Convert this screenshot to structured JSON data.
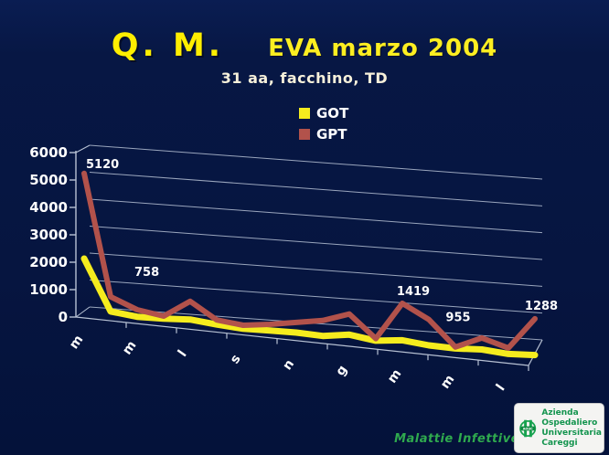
{
  "slide": {
    "title_main": "Q. M.",
    "title_sub": "EVA marzo 2004",
    "subtitle": "31 aa, facchino, TD",
    "footer": "Malattie Infettive",
    "logo": {
      "emblem_text": "AOUC",
      "lines": [
        "Azienda",
        "Ospedaliero",
        "Universitaria",
        "Careggi"
      ]
    }
  },
  "colors": {
    "background": "#061540",
    "title_yellow": "#ffee00",
    "got_line": "#f5ec1e",
    "gpt_line": "#b2524b",
    "gridline": "#9aa6bd",
    "axis": "#b8c2d4",
    "label_white": "#ffffff",
    "footer_green": "#2fa94e",
    "logo_green": "#17a24f"
  },
  "chart_data": {
    "type": "line",
    "style": "3d-perspective",
    "grid": true,
    "legend_position": "top-center",
    "title": "",
    "xlabel": "",
    "ylabel": "",
    "ylim": [
      0,
      6000
    ],
    "yticks": [
      0,
      1000,
      2000,
      3000,
      4000,
      5000,
      6000
    ],
    "categories": [
      "m",
      "",
      "m",
      "",
      "l",
      "",
      "s",
      "",
      "n",
      "",
      "g",
      "",
      "m",
      "",
      "m",
      "",
      "l",
      ""
    ],
    "series": [
      {
        "name": "GOT",
        "color": "#f5ec1e",
        "values": [
          2050,
          230,
          130,
          150,
          210,
          120,
          60,
          85,
          100,
          70,
          200,
          80,
          180,
          90,
          70,
          120,
          55,
          100
        ]
      },
      {
        "name": "GPT",
        "color": "#b2524b",
        "values": [
          5120,
          758,
          380,
          240,
          850,
          280,
          180,
          300,
          450,
          600,
          900,
          150,
          1419,
          955,
          120,
          500,
          250,
          1288
        ]
      }
    ],
    "point_labels": [
      {
        "series": "GPT",
        "index": 0,
        "text": "5120"
      },
      {
        "series": "GPT",
        "index": 1,
        "text": "758"
      },
      {
        "series": "GPT",
        "index": 12,
        "text": "1419"
      },
      {
        "series": "GPT",
        "index": 13,
        "text": "955"
      },
      {
        "series": "GPT",
        "index": 17,
        "text": "1288"
      }
    ]
  }
}
